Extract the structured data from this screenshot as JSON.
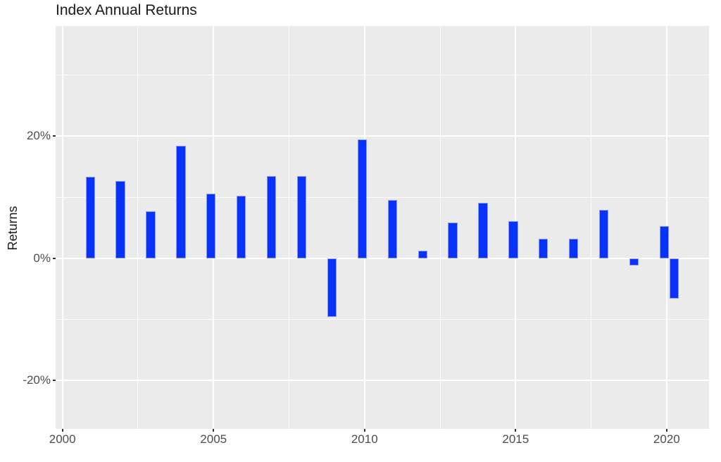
{
  "colors": {
    "background": "#ffffff",
    "panel_background": "#ebebeb",
    "gridline": "#ffffff",
    "bar_fill": "#0832f8",
    "bar_edge": "#8a9bf5",
    "title_text": "#1a1a1a",
    "axis_title_text": "#1a1a1a",
    "tick_label_text": "#4d4d4d",
    "tick_mark": "#333333"
  },
  "chart_data": {
    "type": "bar",
    "title": "Index Annual Returns",
    "xlabel": "",
    "ylabel": "Returns",
    "legend": "none",
    "grid": true,
    "panel_style": "ggplot-gray",
    "x_axis": {
      "lim": [
        1999.774,
        2021.402
      ],
      "ticks": [
        {
          "value": 2000,
          "label": "2000"
        },
        {
          "value": 2005,
          "label": "2005"
        },
        {
          "value": 2010,
          "label": "2010"
        },
        {
          "value": 2015,
          "label": "2015"
        },
        {
          "value": 2020,
          "label": "2020"
        }
      ],
      "minor_ticks": [
        2002.5,
        2007.5,
        2012.5,
        2017.5
      ]
    },
    "y_axis": {
      "lim": [
        -27.9,
        38.0
      ],
      "unit": "%",
      "ticks": [
        {
          "value": 20,
          "label": "20%"
        },
        {
          "value": 0,
          "label": "0%"
        },
        {
          "value": -20,
          "label": "-20%"
        }
      ],
      "minor_ticks": [
        30,
        10,
        -10
      ]
    },
    "bar_width_years": 0.312,
    "bars": [
      {
        "label": "2001",
        "x": 2000.92,
        "value": 13.3
      },
      {
        "label": "2002",
        "x": 2001.92,
        "value": 12.7
      },
      {
        "label": "2003",
        "x": 2002.92,
        "value": 7.7
      },
      {
        "label": "2004",
        "x": 2003.92,
        "value": 18.4
      },
      {
        "label": "2005",
        "x": 2004.92,
        "value": 10.6
      },
      {
        "label": "2006",
        "x": 2005.92,
        "value": 10.2
      },
      {
        "label": "2007",
        "x": 2006.92,
        "value": 13.5
      },
      {
        "label": "2008",
        "x": 2007.92,
        "value": 13.5
      },
      {
        "label": "2009",
        "x": 2008.92,
        "value": -9.6
      },
      {
        "label": "2010",
        "x": 2009.92,
        "value": 19.5
      },
      {
        "label": "2011",
        "x": 2010.92,
        "value": 9.5
      },
      {
        "label": "2012",
        "x": 2011.92,
        "value": 1.2
      },
      {
        "label": "2013",
        "x": 2012.92,
        "value": 5.9
      },
      {
        "label": "2014",
        "x": 2013.92,
        "value": 9.1
      },
      {
        "label": "2015",
        "x": 2014.92,
        "value": 6.1
      },
      {
        "label": "2016",
        "x": 2015.92,
        "value": 3.2
      },
      {
        "label": "2017",
        "x": 2016.92,
        "value": 3.2
      },
      {
        "label": "2018",
        "x": 2017.92,
        "value": 7.9
      },
      {
        "label": "2019",
        "x": 2018.92,
        "value": -1.2
      },
      {
        "label": "2020",
        "x": 2019.92,
        "value": 5.3
      },
      {
        "label": "2020.3",
        "x": 2020.25,
        "value": -6.6
      }
    ]
  }
}
